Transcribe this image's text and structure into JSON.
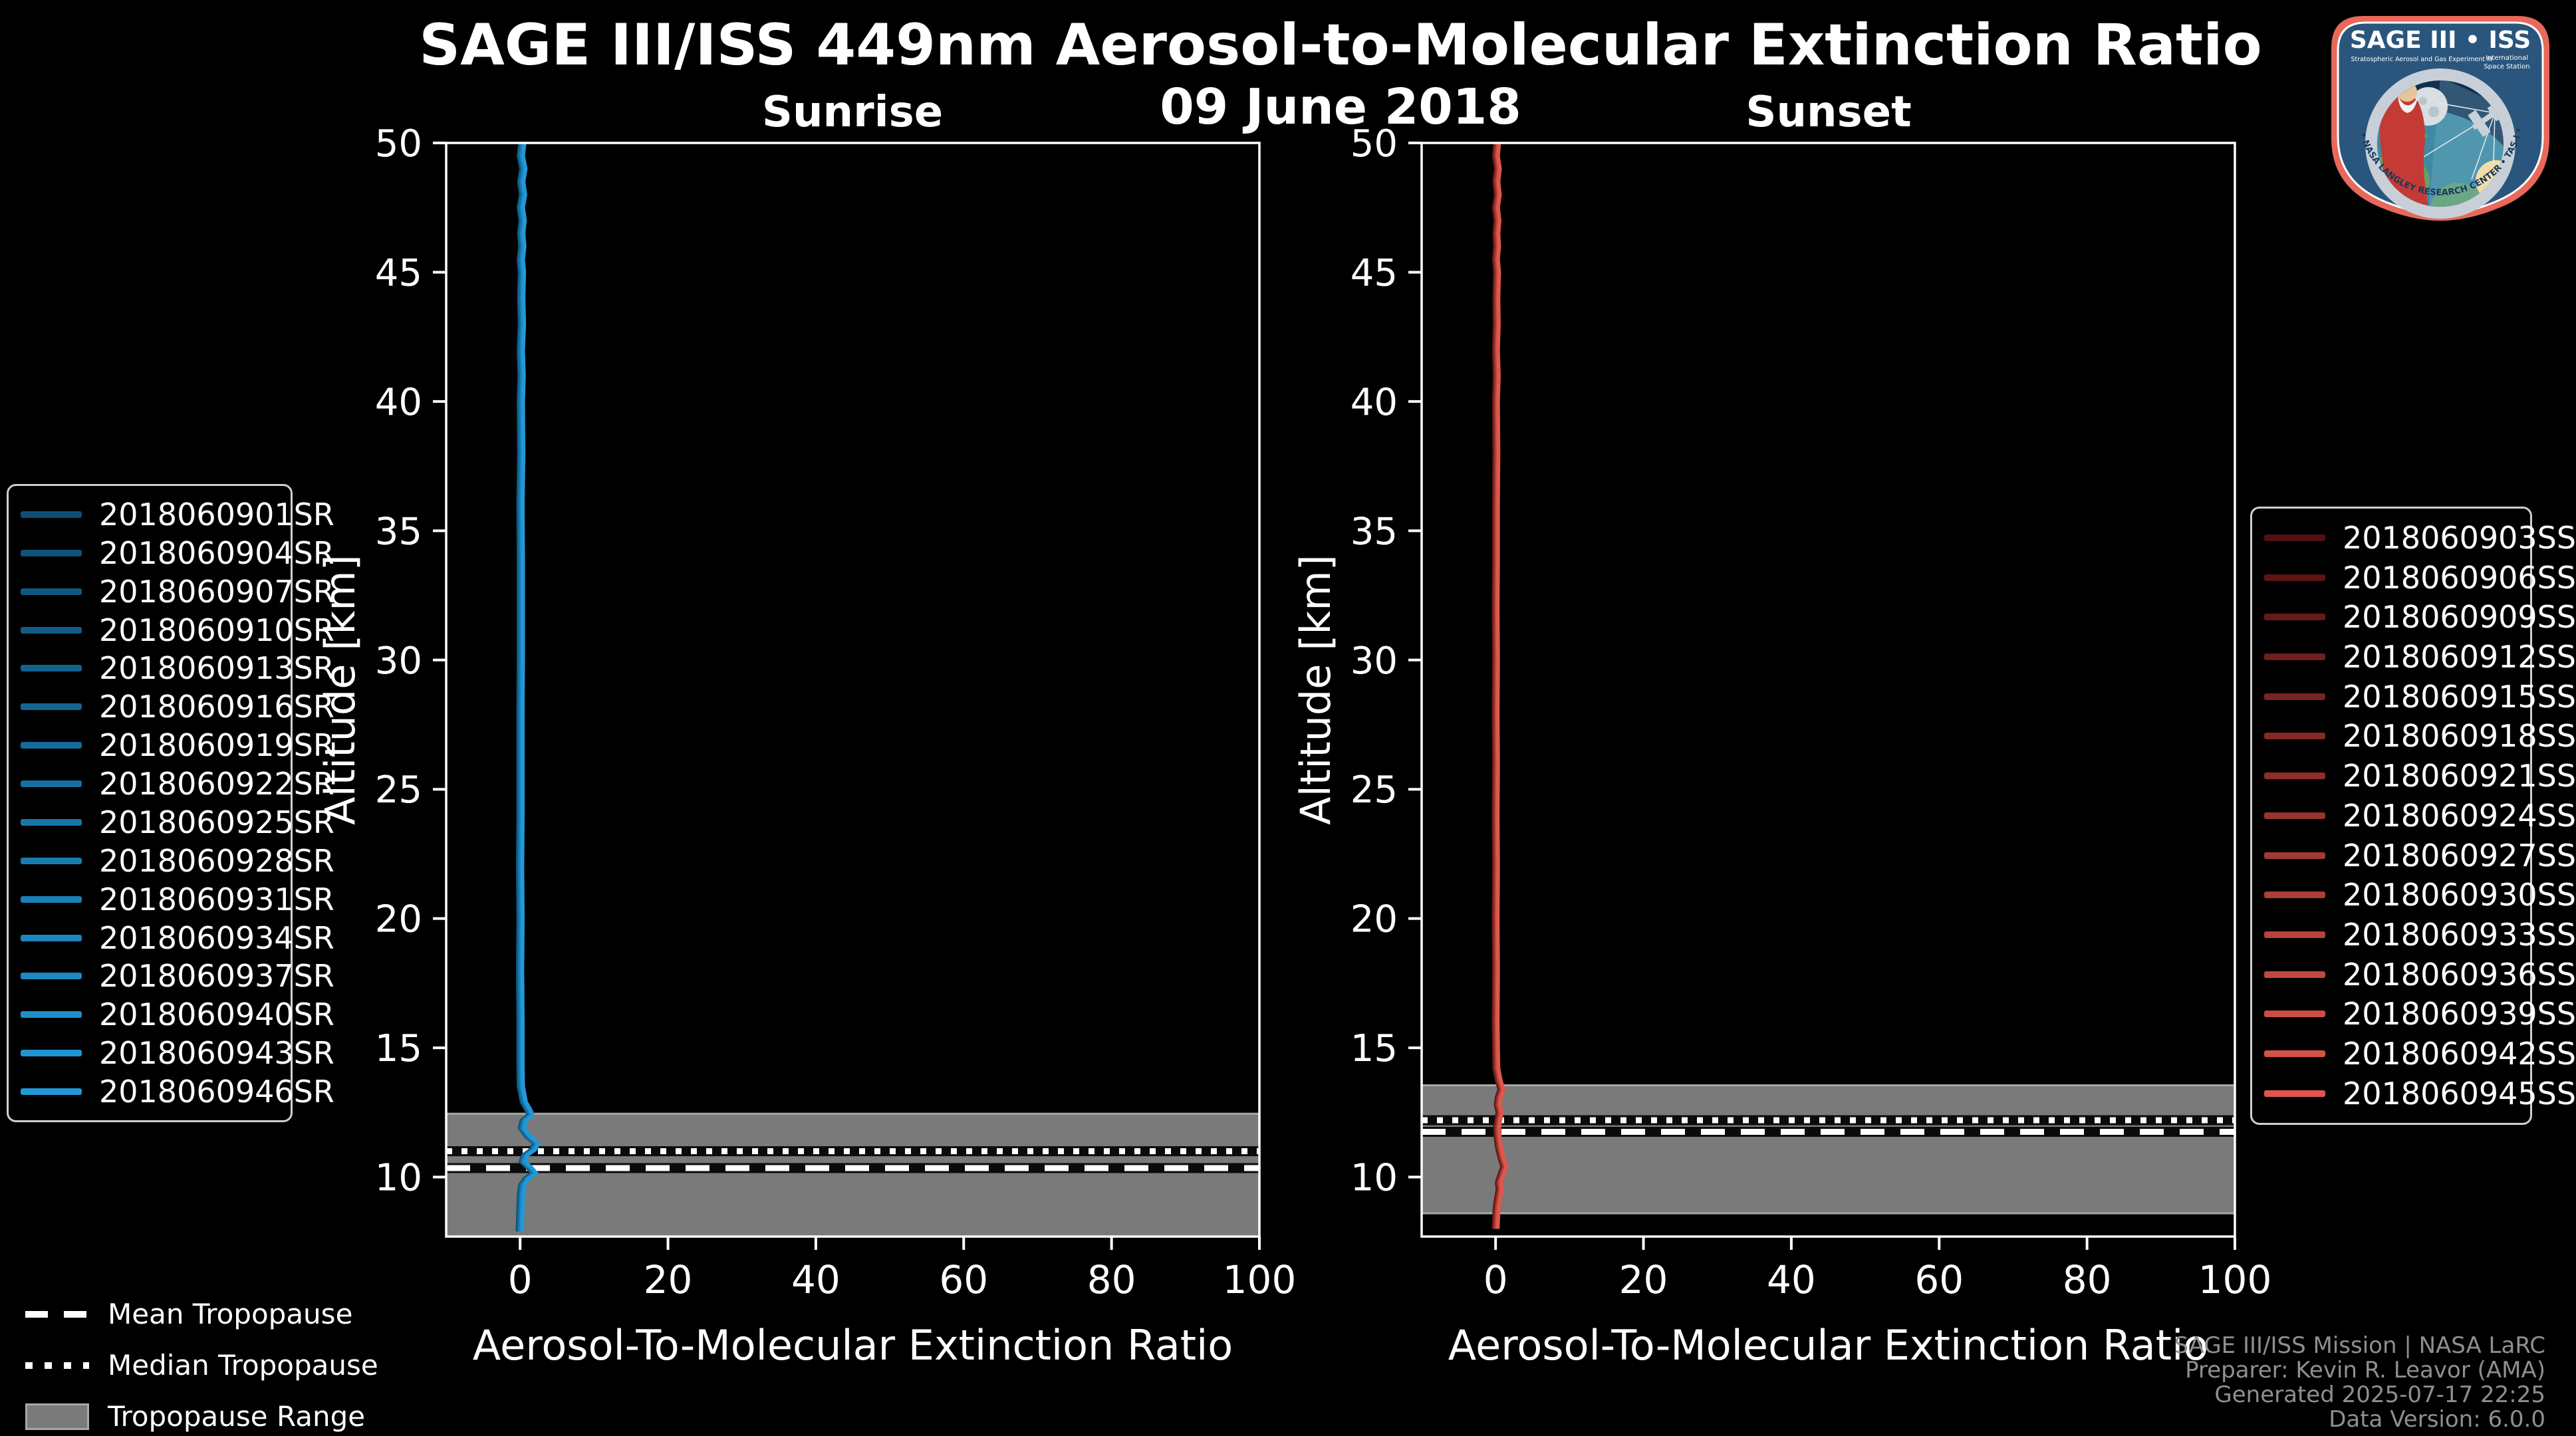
{
  "header": {
    "title": "SAGE III/ISS 449nm Aerosol-to-Molecular Extinction Ratio",
    "date": "09 June 2018"
  },
  "tropo_legend": {
    "mean_label": "Mean Tropopause",
    "median_label": "Median Tropopause",
    "range_label": "Tropopause Range"
  },
  "credits": {
    "lines": [
      "SAGE III/ISS Mission | NASA LaRC",
      "Preparer: Kevin R. Leavor (AMA)",
      "Generated 2025-07-17 22:25",
      "Data Version: 6.0.0"
    ]
  },
  "logo": {
    "title": "SAGE III • ISS",
    "subtitle_left": "Stratospheric Aerosol and Gas Experiment III",
    "subtitle_right_1": "International",
    "subtitle_right_2": "Space Station",
    "ring_text": "BALL • NASA LANGLEY RESEARCH CENTER • TAS-I • ESA"
  },
  "colors": {
    "background": "#000000",
    "axes": "#ffffff",
    "tropopause_band": "#7a7a7a",
    "tropopause_band_edge": "#a8a8a8",
    "sunrise_bright": "#2199D8",
    "sunset_bright": "#DF574D",
    "credits_text": "#8f8f8f"
  },
  "chart_data": [
    {
      "type": "line",
      "title": "Sunrise",
      "xlabel": "Aerosol-To-Molecular Extinction Ratio",
      "ylabel": "Altitude [km]",
      "xlim": [
        -10,
        100
      ],
      "ylim": [
        7.7,
        50
      ],
      "xticks": [
        0,
        20,
        40,
        60,
        80,
        100
      ],
      "yticks": [
        10,
        15,
        20,
        25,
        30,
        35,
        40,
        45,
        50
      ],
      "grid": false,
      "legend_position": "outside-left",
      "tropopause": {
        "range": [
          7.7,
          12.45
        ],
        "median": 11.0,
        "mean": 10.35
      },
      "series": [
        {
          "name": "2018060901SR",
          "color": "#0F4D72"
        },
        {
          "name": "2018060904SR",
          "color": "#105279"
        },
        {
          "name": "2018060907SR",
          "color": "#115780"
        },
        {
          "name": "2018060910SR",
          "color": "#135C86"
        },
        {
          "name": "2018060913SR",
          "color": "#14618D"
        },
        {
          "name": "2018060916SR",
          "color": "#156694"
        },
        {
          "name": "2018060919SR",
          "color": "#166B9B"
        },
        {
          "name": "2018060922SR",
          "color": "#1770A2"
        },
        {
          "name": "2018060925SR",
          "color": "#1976A8"
        },
        {
          "name": "2018060928SR",
          "color": "#1A7BAF"
        },
        {
          "name": "2018060931SR",
          "color": "#1B80B6"
        },
        {
          "name": "2018060934SR",
          "color": "#1C85BD"
        },
        {
          "name": "2018060937SR",
          "color": "#1D8AC3"
        },
        {
          "name": "2018060940SR",
          "color": "#1F8FCA"
        },
        {
          "name": "2018060943SR",
          "color": "#2094D1"
        },
        {
          "name": "2018060946SR",
          "color": "#2199D8"
        }
      ],
      "profile": {
        "alt": [
          50,
          49.5,
          49,
          48.5,
          48,
          47.5,
          47,
          46.5,
          46,
          45.5,
          45,
          44,
          43,
          42,
          41,
          40,
          38,
          36,
          34,
          32,
          30,
          28,
          26,
          24,
          22,
          20,
          18,
          16,
          14.5,
          13.5,
          12.9,
          12.6,
          12.4,
          12.2,
          11.9,
          11.6,
          11.3,
          11.05,
          10.85,
          10.6,
          10.35,
          10.15,
          9.95,
          9.7,
          9.4,
          9.1,
          8.7,
          8.3,
          7.9
        ],
        "ratio": [
          0.3,
          0.1,
          0.45,
          0.15,
          0.4,
          0.1,
          0.35,
          0.15,
          0.3,
          0.1,
          0.25,
          0.15,
          0.25,
          0.1,
          0.2,
          0.1,
          0.15,
          0.05,
          0.1,
          0.1,
          0.1,
          0.05,
          0.05,
          0.05,
          0.0,
          0.05,
          0.0,
          0.05,
          0.05,
          0.1,
          0.5,
          1.1,
          1.4,
          0.5,
          0.25,
          1.0,
          2.2,
          1.7,
          0.7,
          0.35,
          1.3,
          1.9,
          0.9,
          0.3,
          0.15,
          0.1,
          0.05,
          0.0,
          -0.05
        ]
      }
    },
    {
      "type": "line",
      "title": "Sunset",
      "xlabel": "Aerosol-To-Molecular Extinction Ratio",
      "ylabel": "Altitude [km]",
      "xlim": [
        -10,
        100
      ],
      "ylim": [
        7.7,
        50
      ],
      "xticks": [
        0,
        20,
        40,
        60,
        80,
        100
      ],
      "yticks": [
        10,
        15,
        20,
        25,
        30,
        35,
        40,
        45,
        50
      ],
      "grid": false,
      "legend_position": "outside-right",
      "tropopause": {
        "range": [
          8.6,
          13.55
        ],
        "median": 12.2,
        "mean": 11.75
      },
      "series": [
        {
          "name": "2018060903SS",
          "color": "#521010"
        },
        {
          "name": "2018060906SS",
          "color": "#5C1513"
        },
        {
          "name": "2018060909SS",
          "color": "#661A18"
        },
        {
          "name": "2018060912SS",
          "color": "#701F1C"
        },
        {
          "name": "2018060915SS",
          "color": "#7A2421"
        },
        {
          "name": "2018060918SS",
          "color": "#842925"
        },
        {
          "name": "2018060921SS",
          "color": "#8E2E2A"
        },
        {
          "name": "2018060924SS",
          "color": "#98342E"
        },
        {
          "name": "2018060927SS",
          "color": "#A33932"
        },
        {
          "name": "2018060930SS",
          "color": "#AD3E37"
        },
        {
          "name": "2018060933SS",
          "color": "#B7433B"
        },
        {
          "name": "2018060936SS",
          "color": "#C14840"
        },
        {
          "name": "2018060939SS",
          "color": "#CB4D44"
        },
        {
          "name": "2018060942SS",
          "color": "#D55249"
        },
        {
          "name": "2018060945SS",
          "color": "#DF574D"
        }
      ],
      "profile": {
        "alt": [
          50,
          49.5,
          49,
          48.5,
          48,
          47.5,
          47,
          46.5,
          46,
          45.5,
          45,
          44,
          43,
          42,
          41,
          40,
          38,
          36,
          34,
          32,
          30,
          28,
          26,
          24,
          22,
          20,
          18,
          16,
          15,
          14.2,
          13.7,
          13.4,
          13.1,
          12.8,
          12.5,
          12.2,
          11.9,
          11.5,
          11.1,
          10.7,
          10.4,
          10.1,
          9.8,
          9.5,
          9.2,
          8.9,
          8.6,
          8.3,
          8.0
        ],
        "ratio": [
          0.2,
          0.05,
          0.3,
          0.1,
          0.3,
          0.05,
          0.25,
          0.1,
          0.2,
          0.05,
          0.2,
          0.1,
          0.15,
          0.05,
          0.15,
          0.05,
          0.1,
          0.05,
          0.05,
          0.0,
          0.05,
          0.0,
          0.05,
          0.0,
          0.05,
          0.0,
          0.05,
          0.0,
          0.05,
          0.1,
          0.45,
          0.8,
          0.45,
          0.3,
          0.55,
          0.35,
          0.2,
          0.3,
          0.5,
          0.85,
          1.2,
          0.8,
          0.45,
          0.55,
          0.35,
          0.2,
          0.1,
          0.05,
          0.0
        ]
      }
    }
  ]
}
